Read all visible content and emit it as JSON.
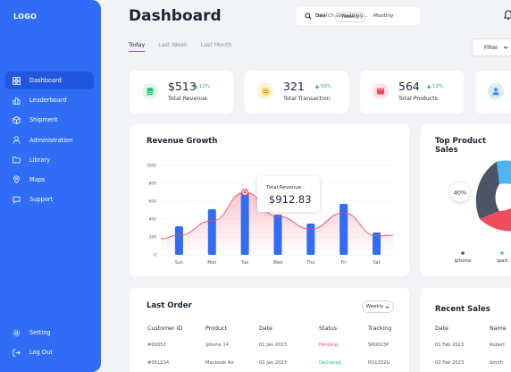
{
  "sidebar": {
    "logo": "LOGO",
    "items": [
      {
        "label": "Dashboard",
        "icon": "dashboard-icon"
      },
      {
        "label": "Leaderboard",
        "icon": "leaderboard-icon"
      },
      {
        "label": "Shipment",
        "icon": "box-icon"
      },
      {
        "label": "Administration",
        "icon": "user-icon"
      },
      {
        "label": "Library",
        "icon": "folder-icon"
      },
      {
        "label": "Maps",
        "icon": "map-pin-icon"
      },
      {
        "label": "Support",
        "icon": "chat-icon"
      }
    ],
    "bottom": [
      {
        "label": "Setting",
        "icon": "gear-icon"
      },
      {
        "label": "Log Out",
        "icon": "logout-icon"
      }
    ]
  },
  "header": {
    "title": "Dashboard",
    "search_placeholder": "Search something..."
  },
  "tabs": [
    "Today",
    "Last Week",
    "Last Month"
  ],
  "filter_label": "Filter",
  "stats": [
    {
      "value": "$513",
      "change": "12%",
      "label": "Total Revenue",
      "color": "#27c26c",
      "bg": "#e1f6ea"
    },
    {
      "value": "321",
      "change": "03%",
      "label": "Total Transaction",
      "color": "#f2c230",
      "bg": "#fdf3d3"
    },
    {
      "value": "564",
      "change": "13%",
      "label": "Total Products",
      "color": "#ef4d5d",
      "bg": "#fde1e3"
    },
    {
      "value": "",
      "change": "",
      "label": "",
      "color": "#3d8ef5",
      "bg": "#dceafd"
    }
  ],
  "revenue": {
    "title": "Revenue Growth",
    "periods": [
      "Day",
      "Weekly",
      "Monthly"
    ],
    "tooltip_label": "Total Revenue :",
    "tooltip_value": "$912.83"
  },
  "chart_data": {
    "type": "bar",
    "categories": [
      "Sun",
      "Mon",
      "Tue",
      "Wed",
      "Thu",
      "Fri",
      "Sat"
    ],
    "series": [
      {
        "values": [
          320,
          510,
          700,
          450,
          350,
          570,
          250
        ]
      },
      {
        "values": [
          220,
          380,
          700,
          430,
          290,
          470,
          210
        ]
      }
    ],
    "ylim": [
      0,
      1000
    ],
    "yticks": [
      "0",
      "200",
      "400",
      "600",
      "800",
      "1000"
    ],
    "highlight_index": 2
  },
  "top_products": {
    "title": "Top Product Sales",
    "percent_label": "40%",
    "legend": [
      "iphone",
      "ipad"
    ]
  },
  "last_order": {
    "title": "Last Order",
    "period": "Weekly",
    "headers": [
      "Customer ID",
      "Product",
      "Date",
      "Status",
      "Tracking"
    ],
    "rows": [
      [
        "#00052",
        "Iphone 14",
        "01 Jan 2023",
        "Pending",
        "SR0023P"
      ],
      [
        "#051134",
        "Macbook Air",
        "03 Jan 2023",
        "Delivered",
        "PQ1332G"
      ]
    ]
  },
  "recent_sales": {
    "title": "Recent Sales",
    "headers": [
      "Date",
      "Name"
    ],
    "rows": [
      [
        "01 Feb 2023",
        "Robert"
      ],
      [
        "03 Feb 2023",
        "Smith"
      ]
    ]
  },
  "colors": {
    "accent": "#2f6df6",
    "bar": "#2f6df6",
    "line": "#ef4d5d",
    "pending": "#ef4d5d",
    "delivered": "#27c26c"
  }
}
